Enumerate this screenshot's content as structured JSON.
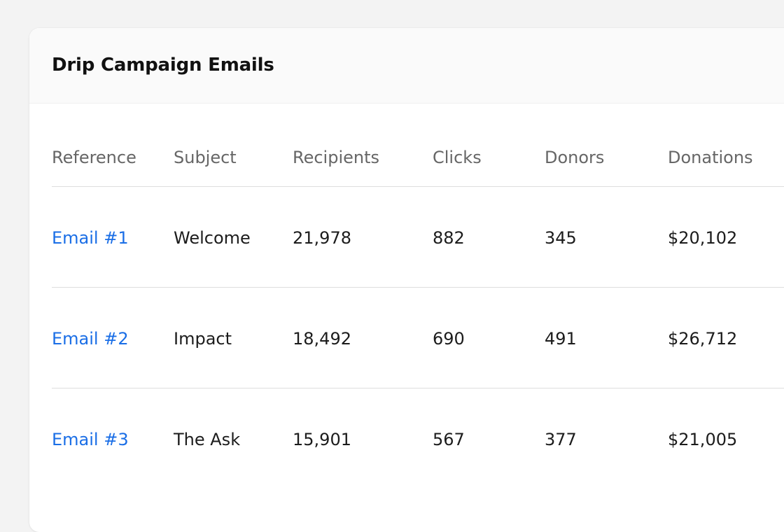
{
  "card": {
    "title": "Drip Campaign Emails"
  },
  "table": {
    "columns": [
      "Reference",
      "Subject",
      "Recipients",
      "Clicks",
      "Donors",
      "Donations"
    ],
    "rows": [
      {
        "reference": "Email #1",
        "subject": "Welcome",
        "recipients": "21,978",
        "clicks": "882",
        "donors": "345",
        "donations": "$20,102"
      },
      {
        "reference": "Email #2",
        "subject": "Impact",
        "recipients": "18,492",
        "clicks": "690",
        "donors": "491",
        "donations": "$26,712"
      },
      {
        "reference": "Email #3",
        "subject": "The Ask",
        "recipients": "15,901",
        "clicks": "567",
        "donors": "377",
        "donations": "$21,005"
      }
    ]
  },
  "colors": {
    "link": "#1a6ee6",
    "header_text": "#666666",
    "body_text": "#1c1c1c",
    "page_background": "#f3f3f3",
    "card_background": "#ffffff"
  }
}
